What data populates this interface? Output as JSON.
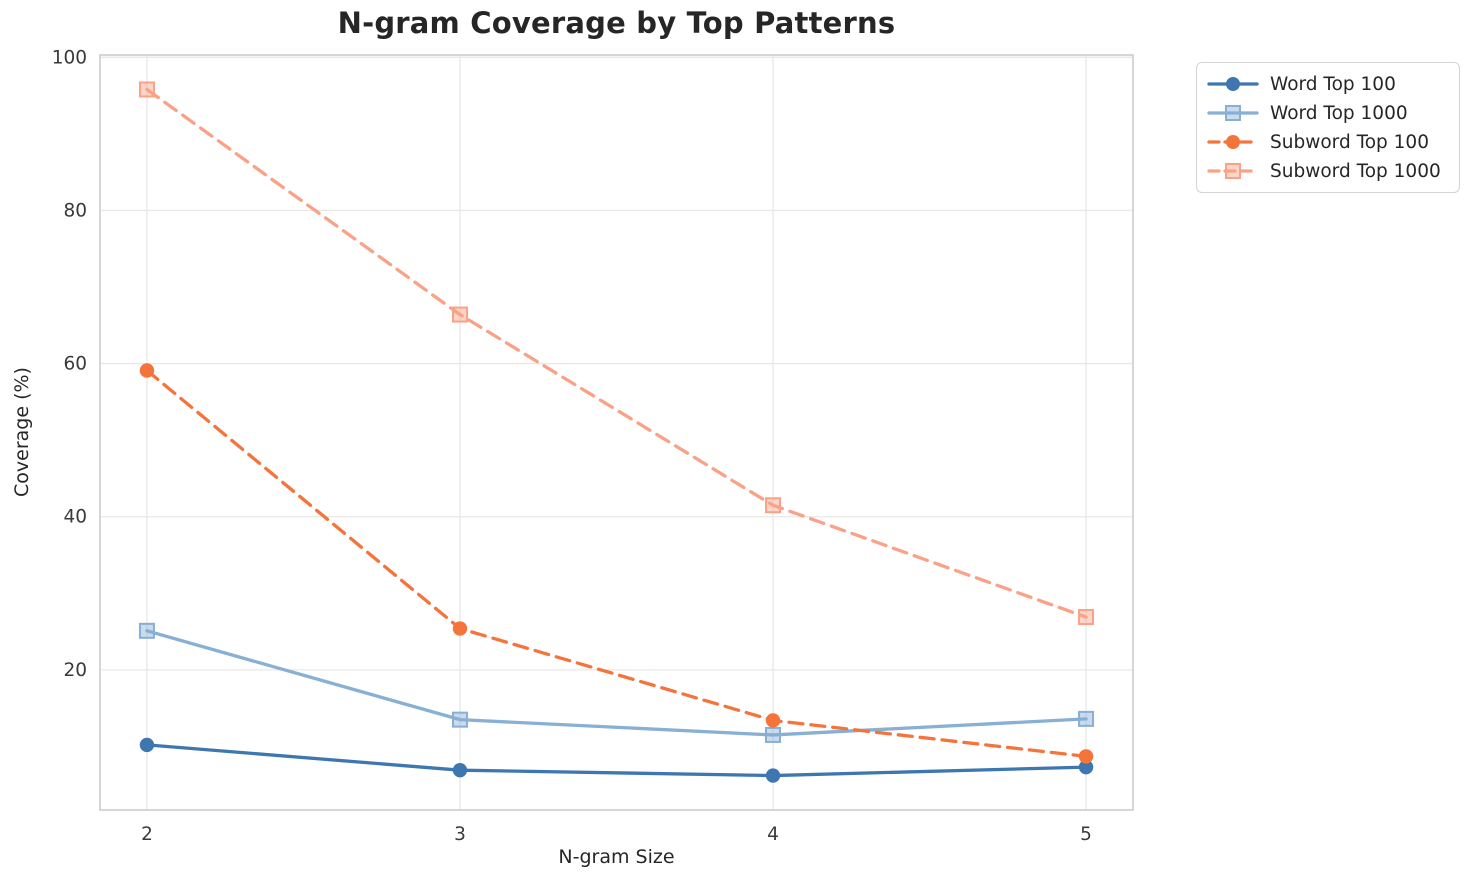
{
  "chart_data": {
    "type": "line",
    "title": "N-gram Coverage by Top Patterns",
    "xlabel": "N-gram Size",
    "ylabel": "Coverage (%)",
    "x": [
      2,
      3,
      4,
      5
    ],
    "xticks": [
      "2",
      "3",
      "4",
      "5"
    ],
    "yticks": [
      "20",
      "40",
      "60",
      "80",
      "100"
    ],
    "xtick_values": [
      2,
      3,
      4,
      5
    ],
    "ytick_values": [
      20,
      40,
      60,
      80,
      100
    ],
    "xlim": [
      1.85,
      5.15
    ],
    "ylim": [
      1.7,
      100.3
    ],
    "grid": true,
    "legend_position": "outside upper right",
    "series": [
      {
        "name": "Word Top 100",
        "values": [
          10.2,
          6.9,
          6.2,
          7.3
        ],
        "color": "#3E77B0",
        "marker": "circle",
        "linestyle": "solid"
      },
      {
        "name": "Word Top 1000",
        "values": [
          25.1,
          13.5,
          11.5,
          13.6
        ],
        "color": "#88AFD4",
        "marker": "square",
        "linestyle": "solid"
      },
      {
        "name": "Subword Top 100",
        "values": [
          59.1,
          25.4,
          13.4,
          8.7
        ],
        "color": "#F4743B",
        "marker": "circle",
        "linestyle": "dashed"
      },
      {
        "name": "Subword Top 1000",
        "values": [
          95.8,
          66.4,
          41.5,
          26.9
        ],
        "color": "#F9A287",
        "marker": "square",
        "linestyle": "dashed"
      }
    ],
    "colors": {
      "background": "#ffffff",
      "grid": "#E8E8E8",
      "spine": "#CCCCCC",
      "title": "#262626",
      "tick_label": "#3A3A3A",
      "axis_label": "#262626",
      "legend_border": "#D4D4D4"
    }
  }
}
